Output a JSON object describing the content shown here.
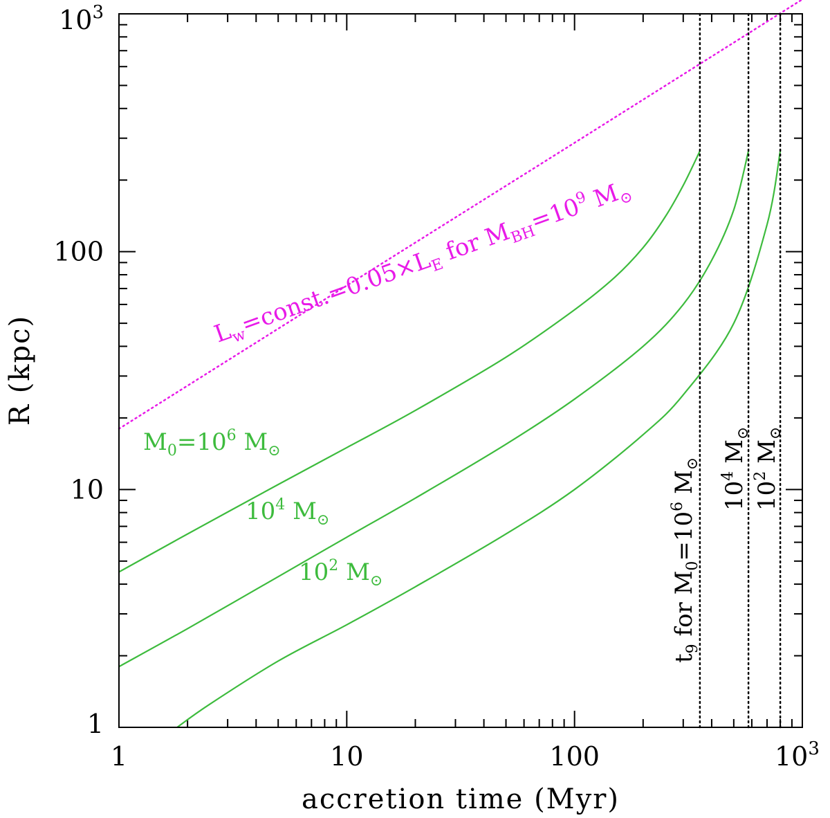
{
  "chart_data": {
    "type": "line",
    "title": "",
    "xlabel": "accretion time (Myr)",
    "ylabel": "R (kpc)",
    "xscale": "log",
    "yscale": "log",
    "xlim": [
      1,
      1000
    ],
    "ylim": [
      1,
      1000
    ],
    "x_ticks": [
      {
        "value": 1,
        "base": "1",
        "exp": ""
      },
      {
        "value": 10,
        "base": "10",
        "exp": ""
      },
      {
        "value": 100,
        "base": "100",
        "exp": ""
      },
      {
        "value": 1000,
        "base": "10",
        "exp": "3"
      }
    ],
    "y_ticks": [
      {
        "value": 1,
        "base": "1",
        "exp": ""
      },
      {
        "value": 10,
        "base": "10",
        "exp": ""
      },
      {
        "value": 100,
        "base": "100",
        "exp": ""
      },
      {
        "value": 1000,
        "base": "10",
        "exp": "3"
      }
    ],
    "series": [
      {
        "name": "L_w=const.=0.05×L_E for M_BH=10^9 M_sun",
        "color": "#e81ae8",
        "style": "dotted",
        "x": [
          1,
          10,
          100,
          1000
        ],
        "y": [
          18,
          72,
          287,
          1150
        ]
      },
      {
        "name": "M0=10^6 Msun",
        "color": "#3dbb3d",
        "style": "solid",
        "x": [
          1,
          2,
          5,
          10,
          20,
          50,
          100,
          150,
          200,
          250,
          300,
          355
        ],
        "y": [
          4.5,
          6.5,
          10.5,
          15,
          21.5,
          36,
          57,
          78,
          104,
          140,
          190,
          265
        ]
      },
      {
        "name": "M0=10^4 Msun",
        "color": "#3dbb3d",
        "style": "solid",
        "x": [
          1,
          2,
          5,
          10,
          20,
          50,
          100,
          200,
          300,
          400,
          500,
          580
        ],
        "y": [
          1.8,
          2.6,
          4.3,
          6.3,
          9.2,
          15.5,
          24,
          40,
          60,
          92,
          150,
          265
        ]
      },
      {
        "name": "M0=10^2 Msun",
        "color": "#3dbb3d",
        "style": "solid",
        "x": [
          1.8,
          2.5,
          5,
          10,
          20,
          50,
          100,
          200,
          300,
          500,
          700,
          800
        ],
        "y": [
          1,
          1.25,
          1.9,
          2.7,
          3.9,
          6.5,
          10,
          17,
          25,
          50,
          130,
          265
        ]
      },
      {
        "name": "t9 for M0=10^6 Msun",
        "color": "#000000",
        "style": "dotted",
        "x": [
          355,
          355
        ],
        "y": [
          1,
          1000
        ]
      },
      {
        "name": "t9 for M0=10^4 Msun",
        "color": "#000000",
        "style": "dotted",
        "x": [
          580,
          580
        ],
        "y": [
          1,
          1000
        ]
      },
      {
        "name": "t9 for M0=10^2 Msun",
        "color": "#000000",
        "style": "dotted",
        "x": [
          800,
          800
        ],
        "y": [
          1,
          1000
        ]
      }
    ],
    "annotations": {
      "magenta": {
        "pre": "L",
        "sub1": "w",
        "mid1": "=const.=0.05×L",
        "sub2": "E",
        "mid2": " for M",
        "sub3": "BH",
        "mid3": "=10",
        "sup": "9",
        "unit": " M",
        "sun": "⊙"
      },
      "m6": {
        "pre": "M",
        "sub": "0",
        "mid": "=10",
        "sup": "6",
        "unit": " M",
        "sun": "⊙"
      },
      "m4": {
        "pre": "10",
        "sup": "4",
        "unit": " M",
        "sun": "⊙"
      },
      "m2": {
        "pre": "10",
        "sup": "2",
        "unit": " M",
        "sun": "⊙"
      },
      "v6": {
        "pre": "t",
        "sub1": "9",
        "mid": " for M",
        "sub2": "0",
        "eq": "=10",
        "sup": "6",
        "unit": " M",
        "sun": "⊙"
      },
      "v4": {
        "pre": "10",
        "sup": "4",
        "unit": " M",
        "sun": "⊙"
      },
      "v2": {
        "pre": "10",
        "sup": "2",
        "unit": " M",
        "sun": "⊙"
      }
    }
  }
}
